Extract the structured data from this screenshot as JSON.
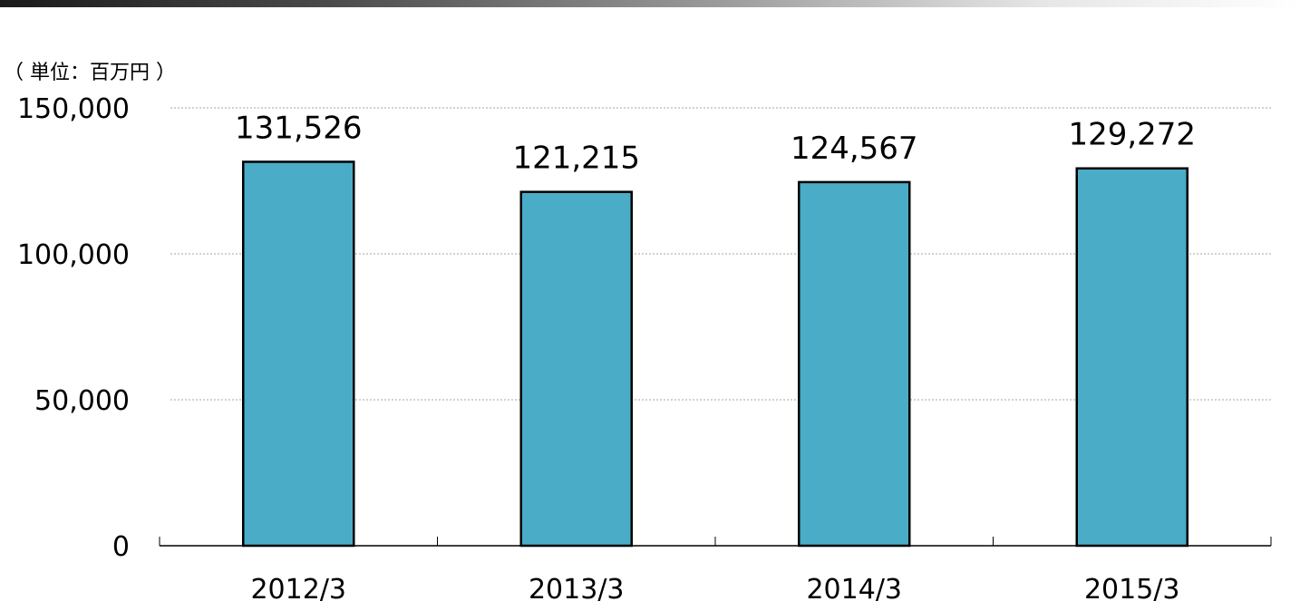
{
  "unit_label": "（ 単位：百万円 ）",
  "colors": {
    "bar_fill": "#4aacc6",
    "bar_stroke": "#000000",
    "grid": "#a6a6a6",
    "axis": "#000000"
  },
  "chart_data": {
    "type": "bar",
    "title": "",
    "xlabel": "",
    "ylabel": "",
    "categories": [
      "2012/3",
      "2013/3",
      "2014/3",
      "2015/3"
    ],
    "values": [
      131526,
      121215,
      124567,
      129272
    ],
    "value_labels": [
      "131,526",
      "121,215",
      "124,567",
      "129,272"
    ],
    "ylim": [
      0,
      150000
    ],
    "y_ticks": [
      0,
      50000,
      100000,
      150000
    ],
    "y_tick_labels": [
      "0",
      "50,000",
      "100,000",
      "150,000"
    ],
    "grid": true,
    "legend": "none"
  }
}
